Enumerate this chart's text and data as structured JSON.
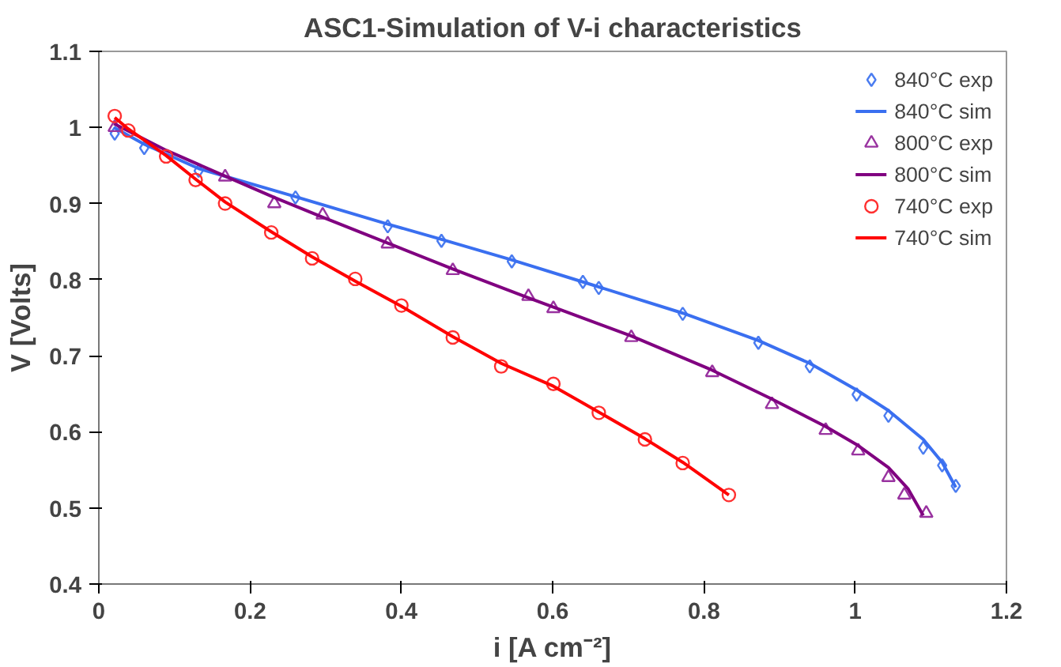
{
  "chart_data": {
    "type": "scatter",
    "title": "ASC1-Simulation of V-i characteristics",
    "xlabel": "i [A cm⁻²]",
    "ylabel": "V [Volts]",
    "xlim": [
      0,
      1.2
    ],
    "xticks": [
      0,
      0.2,
      0.4,
      0.6,
      0.8,
      1,
      1.2
    ],
    "ylim": [
      0.4,
      1.1
    ],
    "yticks": [
      0.4,
      0.5,
      0.6,
      0.7,
      0.8,
      0.9,
      1,
      1.1
    ],
    "grid": false,
    "legend": "top right",
    "series": [
      {
        "name": "840°C exp",
        "marker": "diamond",
        "color": "#4a7cf0",
        "x": [
          0.021,
          0.06,
          0.132,
          0.26,
          0.382,
          0.453,
          0.546,
          0.64,
          0.661,
          0.772,
          0.872,
          0.94,
          1.002,
          1.044,
          1.09,
          1.115,
          1.133
        ],
        "values": [
          0.992,
          0.973,
          0.943,
          0.908,
          0.87,
          0.851,
          0.824,
          0.797,
          0.789,
          0.755,
          0.717,
          0.686,
          0.649,
          0.621,
          0.579,
          0.556,
          0.529
        ]
      },
      {
        "name": "840°C sim",
        "type": "line",
        "color": "#3a6ff0",
        "x": [
          0.02,
          0.06,
          0.132,
          0.26,
          0.382,
          0.453,
          0.546,
          0.64,
          0.772,
          0.872,
          0.94,
          1.002,
          1.044,
          1.09,
          1.115,
          1.133
        ],
        "values": [
          1.0,
          0.978,
          0.946,
          0.909,
          0.873,
          0.853,
          0.826,
          0.797,
          0.756,
          0.72,
          0.69,
          0.655,
          0.628,
          0.59,
          0.56,
          0.527
        ]
      },
      {
        "name": "800°C exp",
        "marker": "triangle",
        "color": "#9933a0",
        "x": [
          0.021,
          0.089,
          0.167,
          0.232,
          0.296,
          0.382,
          0.468,
          0.568,
          0.601,
          0.704,
          0.811,
          0.89,
          0.961,
          1.004,
          1.044,
          1.065,
          1.094
        ],
        "values": [
          1.0,
          null,
          0.935,
          0.9,
          0.885,
          0.847,
          0.812,
          0.778,
          0.762,
          0.724,
          0.678,
          0.636,
          0.602,
          0.575,
          0.54,
          0.517,
          0.493
        ]
      },
      {
        "name": "800°C sim",
        "type": "line",
        "color": "#800080",
        "x": [
          0.02,
          0.089,
          0.167,
          0.232,
          0.296,
          0.382,
          0.468,
          0.568,
          0.704,
          0.811,
          0.89,
          0.961,
          1.004,
          1.044,
          1.07,
          1.09
        ],
        "values": [
          1.005,
          0.97,
          0.936,
          0.908,
          0.882,
          0.848,
          0.814,
          0.776,
          0.726,
          0.681,
          0.643,
          0.607,
          0.582,
          0.553,
          0.525,
          0.49
        ]
      },
      {
        "name": "740°C exp",
        "marker": "circle",
        "color": "#ff3030",
        "x": [
          0.021,
          0.039,
          0.089,
          0.128,
          0.167,
          0.228,
          0.282,
          0.339,
          0.4,
          0.468,
          0.532,
          0.601,
          0.661,
          0.722,
          0.772,
          0.833
        ],
        "values": [
          1.015,
          0.996,
          0.962,
          0.931,
          0.9,
          0.862,
          0.828,
          0.801,
          0.766,
          0.724,
          0.686,
          0.663,
          0.625,
          0.59,
          0.559,
          0.517
        ]
      },
      {
        "name": "740°C sim",
        "type": "line",
        "color": "#ff0000",
        "x": [
          0.021,
          0.039,
          0.089,
          0.128,
          0.167,
          0.228,
          0.282,
          0.339,
          0.4,
          0.468,
          0.532,
          0.601,
          0.661,
          0.722,
          0.772,
          0.833
        ],
        "values": [
          1.013,
          0.998,
          0.963,
          0.932,
          0.902,
          0.863,
          0.83,
          0.798,
          0.765,
          0.725,
          0.69,
          0.66,
          0.626,
          0.591,
          0.56,
          0.517
        ]
      }
    ]
  }
}
